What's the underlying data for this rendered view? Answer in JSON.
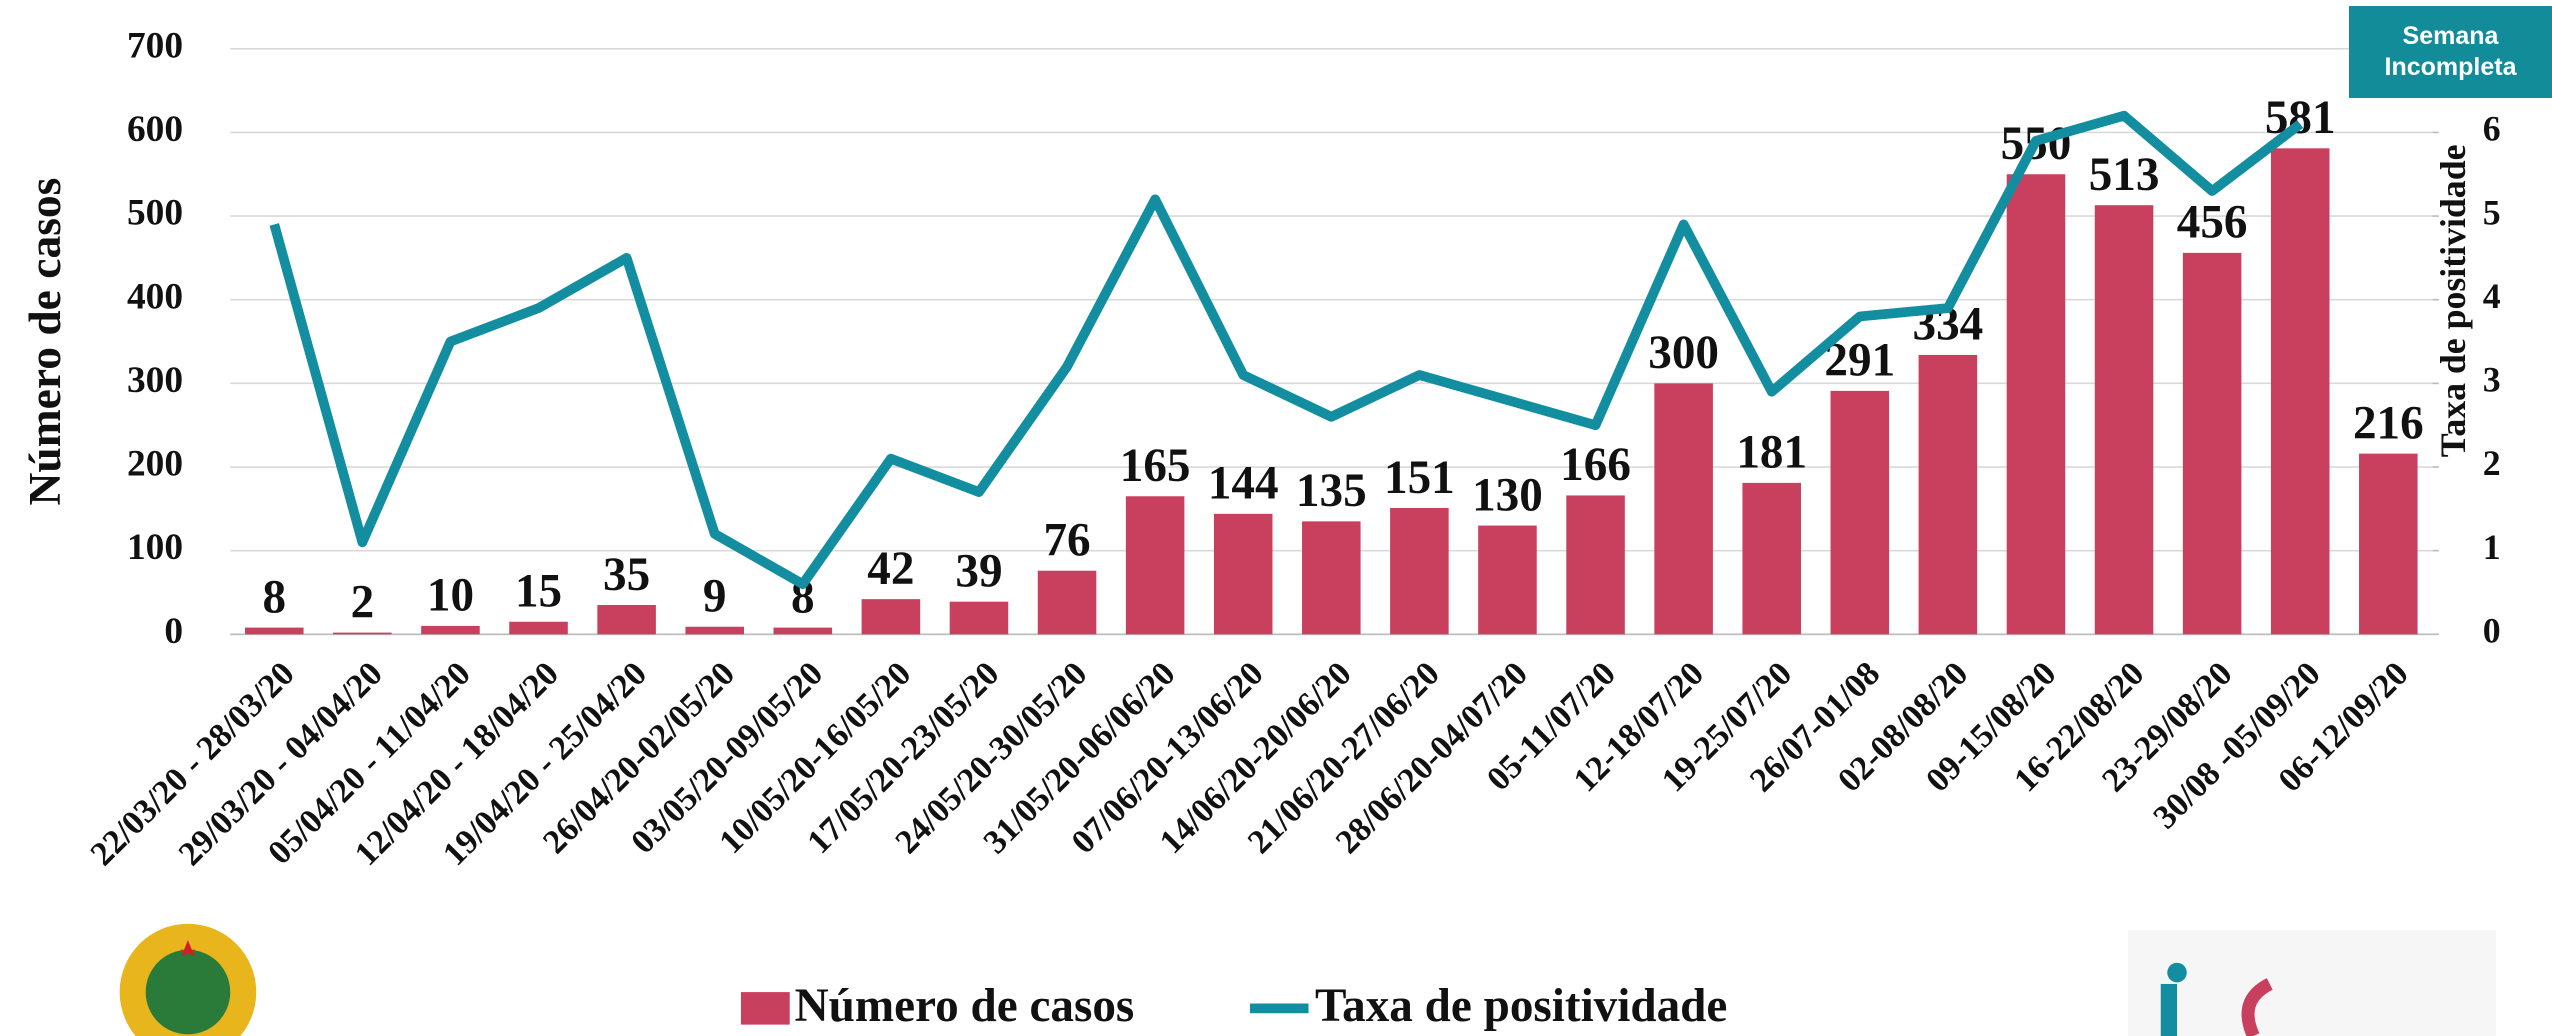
{
  "chart_data": {
    "type": "bar-line",
    "categories": [
      "22/03/20 - 28/03/20",
      "29/03/20 - 04/04/20",
      "05/04/20 - 11/04/20",
      "12/04/20 - 18/04/20",
      "19/04/20 - 25/04/20",
      "26/04/20-02/05/20",
      "03/05/20-09/05/20",
      "10/05/20-16/05/20",
      "17/05/20-23/05/20",
      "24/05/20-30/05/20",
      "31/05/20-06/06/20",
      "07/06/20-13/06/20",
      "14/06/20-20/06/20",
      "21/06/20-27/06/20",
      "28/06/20-04/07/20",
      "05-11/07/20",
      "12-18/07/20",
      "19-25/07/20",
      "26/07-01/08",
      "02-08/08/20",
      "09-15/08/20",
      "16-22/08/20",
      "23-29/08/20",
      "30/08 -05/09/20",
      "06-12/09/20"
    ],
    "series": [
      {
        "name": "Número de casos",
        "color": "#c9405f",
        "type": "bar",
        "values": [
          8,
          2,
          10,
          15,
          35,
          9,
          8,
          42,
          39,
          76,
          165,
          144,
          135,
          151,
          130,
          166,
          300,
          181,
          291,
          334,
          550,
          513,
          456,
          581,
          216
        ]
      },
      {
        "name": "Taxa de positividade",
        "color": "#138ea0",
        "type": "line",
        "axis": "y2",
        "values": [
          4.9,
          1.1,
          3.5,
          3.9,
          4.5,
          1.2,
          0.6,
          2.1,
          1.7,
          3.2,
          5.2,
          3.1,
          2.6,
          3.1,
          2.8,
          2.5,
          4.9,
          2.9,
          3.8,
          3.9,
          5.9,
          6.2,
          5.3,
          6.1,
          null
        ]
      }
    ],
    "ylabel": "Número de casos",
    "y2label": "Taxa de positividade",
    "ylim": [
      0,
      700
    ],
    "yticks": [
      0,
      100,
      200,
      300,
      400,
      500,
      600,
      700
    ],
    "y2lim": [
      0,
      7
    ],
    "y2ticks": [
      0,
      1,
      2,
      3,
      4,
      5,
      6
    ],
    "annotation": "Semana Incompleta",
    "grid": true,
    "legend": "bottom"
  }
}
